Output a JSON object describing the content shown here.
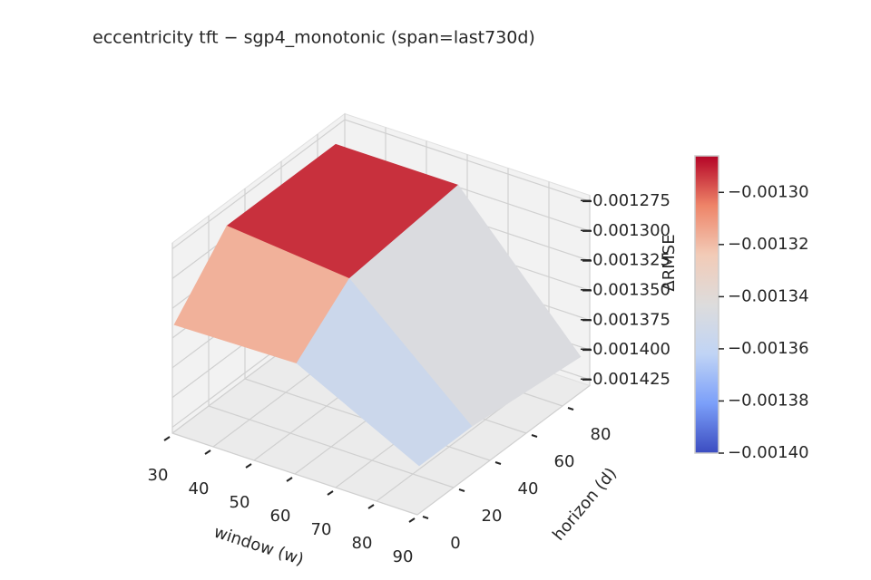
{
  "chart_data": {
    "type": "surface3d",
    "title": "eccentricity  tft − sgp4_monotonic  (span=last730d)",
    "xlabel": "window (w)",
    "ylabel": "horizon (d)",
    "zlabel": "ΔRMSE",
    "x": [
      30,
      60,
      90
    ],
    "y": [
      1,
      30,
      90
    ],
    "z": [
      [
        -0.00134,
        -0.001338,
        -0.00139
      ],
      [
        -0.00129,
        -0.0013,
        -0.00139
      ],
      [
        -0.00129,
        -0.00129,
        -0.0014
      ]
    ],
    "xlim": [
      30,
      90
    ],
    "ylim": [
      0,
      95
    ],
    "zlim": [
      -0.00143,
      -0.00127
    ],
    "xticks": [
      30,
      40,
      50,
      60,
      70,
      80,
      90
    ],
    "yticks": [
      0,
      20,
      40,
      60,
      80
    ],
    "zticks": [
      {
        "value": -0.001425,
        "label": "−0.001425"
      },
      {
        "value": -0.0014,
        "label": "−0.001400"
      },
      {
        "value": -0.001375,
        "label": "−0.001375"
      },
      {
        "value": -0.00135,
        "label": "−0.001350"
      },
      {
        "value": -0.001325,
        "label": "−0.001325"
      },
      {
        "value": -0.0013,
        "label": "−0.001300"
      },
      {
        "value": -0.001275,
        "label": "−0.001275"
      }
    ],
    "cmap": [
      "#3b4cc0",
      "#7b9ff9",
      "#c0d4f5",
      "#dddcdc",
      "#f2cbb7",
      "#ee8468",
      "#b40426"
    ],
    "clim": [
      -0.0014,
      -0.001286
    ],
    "cticks": [
      {
        "value": -0.0014,
        "label": "−0.00140"
      },
      {
        "value": -0.00138,
        "label": "−0.00138"
      },
      {
        "value": -0.00136,
        "label": "−0.00136"
      },
      {
        "value": -0.00134,
        "label": "−0.00134"
      },
      {
        "value": -0.00132,
        "label": "−0.00132"
      },
      {
        "value": -0.0013,
        "label": "−0.00130"
      }
    ],
    "grid": true
  }
}
